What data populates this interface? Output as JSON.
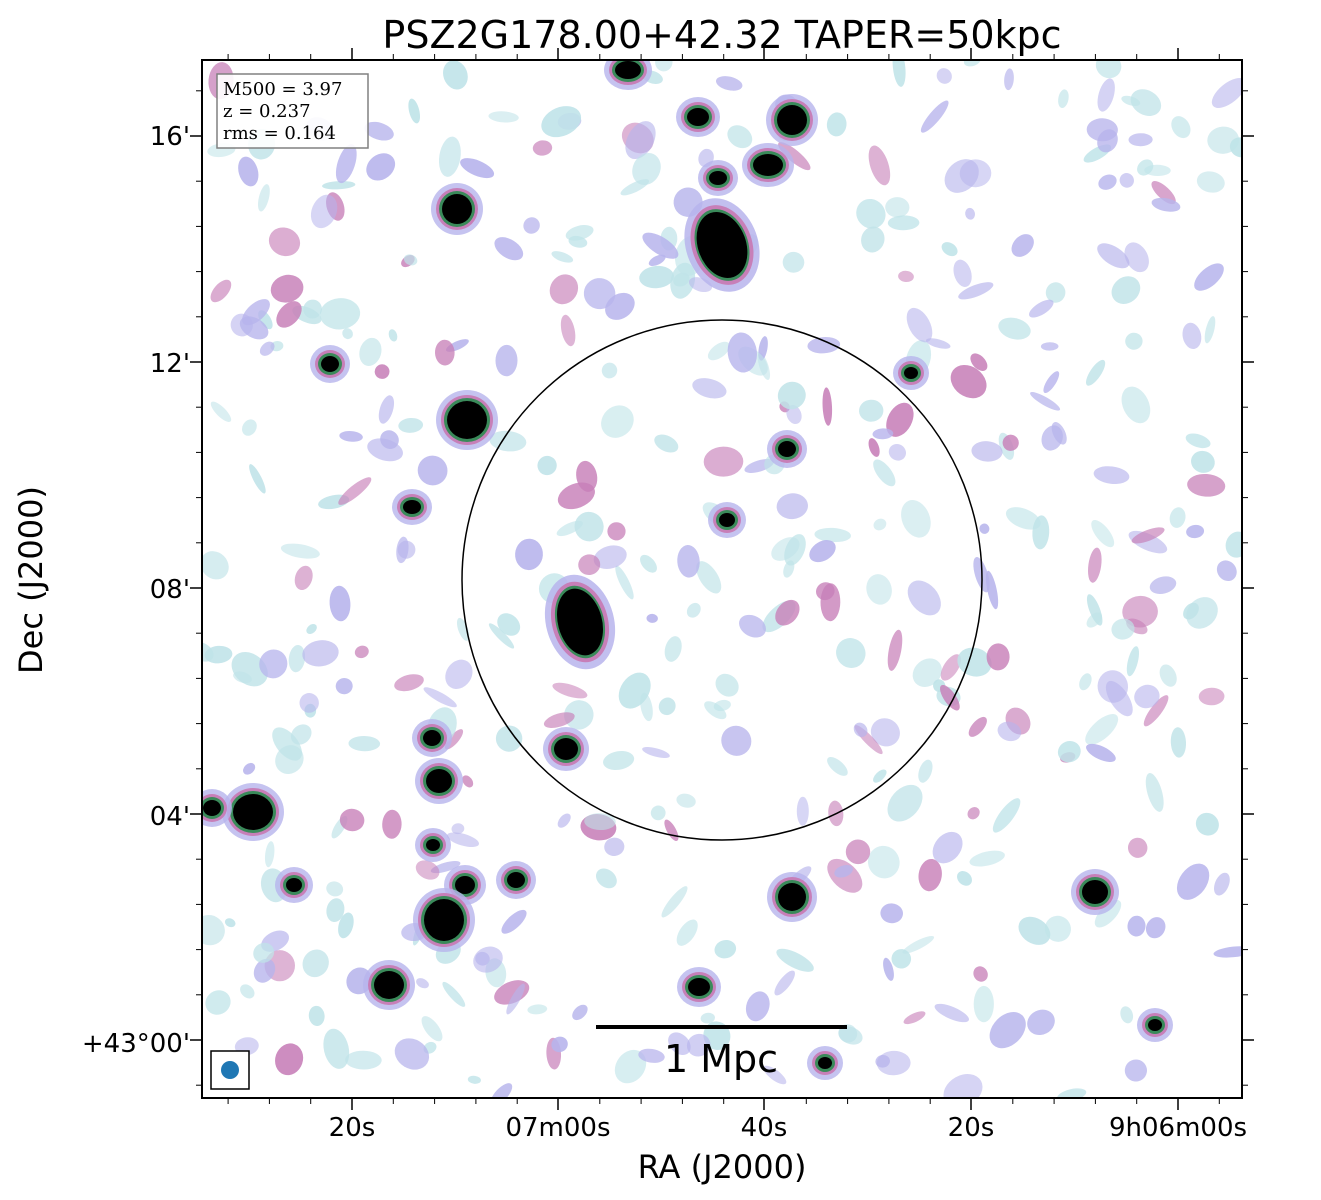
{
  "chart_data": {
    "type": "heatmap",
    "title": "PSZ2G178.00+42.32 TAPER=50kpc",
    "xlabel": "RA (J2000)",
    "ylabel": "Dec (J2000)",
    "x_tick_labels": [
      "20s",
      "07m00s",
      "40s",
      "20s",
      "9h06m00s"
    ],
    "y_tick_labels": [
      "16'",
      "12'",
      "08'",
      "04'",
      "+43°00'"
    ],
    "info_box": {
      "m500": "M500 = 3.97",
      "z": "z = 0.237",
      "rms": "rms = 0.164"
    },
    "scale_bar_label": "1 Mpc",
    "colors": {
      "faint": "#bfe3e8",
      "low": "#b7b4ec",
      "mid": "#c77fb8",
      "high": "#3a8a5a",
      "peak": "#000000",
      "beam": "#1f77b4"
    }
  }
}
